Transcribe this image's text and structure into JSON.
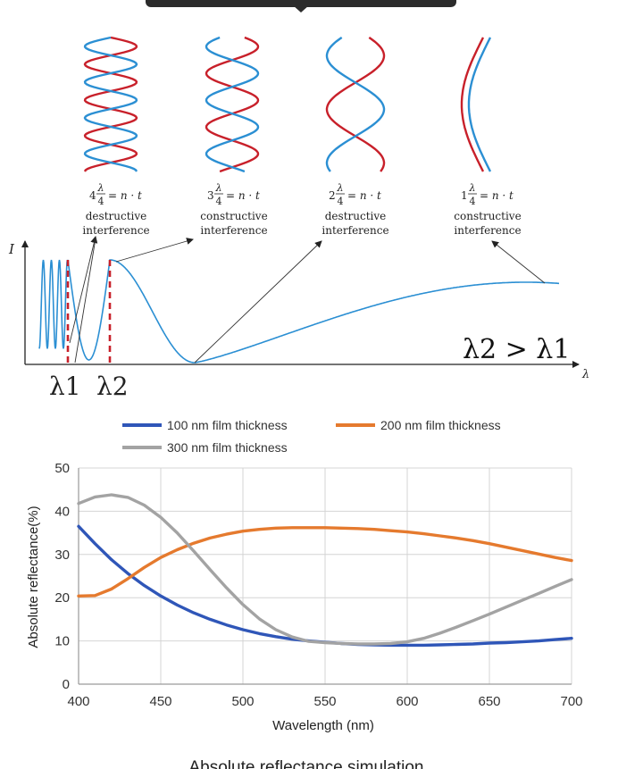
{
  "colors": {
    "red": "#c8202a",
    "blue": "#2b8fd3",
    "c100": "#2f56b8",
    "c200": "#e57a2e",
    "c300": "#a3a3a3",
    "tooltip": "#2b2b2b"
  },
  "diagram": {
    "intensity_axis_label": "I",
    "wavelength_axis_label": "λ",
    "marker_labels": [
      "λ1",
      "λ2"
    ],
    "relation": "λ2 > λ1",
    "panels": [
      {
        "numeral": "4",
        "equation_rhs": "= n · t",
        "line1": "destructive",
        "line2": "interference"
      },
      {
        "numeral": "3",
        "equation_rhs": "= n · t",
        "line1": "constructive",
        "line2": "interference"
      },
      {
        "numeral": "2",
        "equation_rhs": "= n · t",
        "line1": "destructive",
        "line2": "interference"
      },
      {
        "numeral": "1",
        "equation_rhs": "= n · t",
        "line1": "constructive",
        "line2": "interference"
      }
    ],
    "fraction_num": "λ",
    "fraction_den": "4"
  },
  "chart_data": {
    "type": "line",
    "title": "Absolute reflectance simulation",
    "xlabel": "Wavelength (nm)",
    "ylabel": "Absolute reflectance(%)",
    "xlim": [
      400,
      700
    ],
    "ylim": [
      0,
      50
    ],
    "xticks": [
      400,
      450,
      500,
      550,
      600,
      650,
      700
    ],
    "yticks": [
      0,
      10,
      20,
      30,
      40,
      50
    ],
    "grid": true,
    "legend": "top",
    "x": [
      400,
      410,
      420,
      430,
      440,
      450,
      460,
      470,
      480,
      490,
      500,
      510,
      520,
      530,
      540,
      550,
      560,
      570,
      580,
      590,
      600,
      610,
      620,
      630,
      640,
      650,
      660,
      670,
      680,
      690,
      700
    ],
    "series": [
      {
        "name": "100 nm film thickness",
        "color": "#2f56b8",
        "values": [
          36.5,
          32.5,
          28.8,
          25.6,
          22.8,
          20.4,
          18.3,
          16.5,
          15.0,
          13.7,
          12.6,
          11.7,
          11.0,
          10.4,
          10.0,
          9.7,
          9.4,
          9.2,
          9.1,
          9.0,
          9.0,
          9.0,
          9.1,
          9.2,
          9.3,
          9.5,
          9.6,
          9.8,
          10.0,
          10.3,
          10.6
        ]
      },
      {
        "name": "200 nm film thickness",
        "color": "#e57a2e",
        "values": [
          20.4,
          20.5,
          22.0,
          24.4,
          27.0,
          29.3,
          31.1,
          32.6,
          33.8,
          34.7,
          35.4,
          35.8,
          36.1,
          36.2,
          36.2,
          36.2,
          36.1,
          36.0,
          35.8,
          35.5,
          35.2,
          34.8,
          34.3,
          33.8,
          33.2,
          32.5,
          31.7,
          30.9,
          30.1,
          29.3,
          28.6
        ]
      },
      {
        "name": "300 nm film thickness",
        "color": "#a3a3a3",
        "values": [
          41.8,
          43.3,
          43.8,
          43.2,
          41.4,
          38.6,
          35.0,
          30.8,
          26.5,
          22.3,
          18.4,
          15.1,
          12.6,
          10.9,
          9.9,
          9.6,
          9.4,
          9.3,
          9.3,
          9.4,
          9.8,
          10.6,
          11.8,
          13.2,
          14.7,
          16.2,
          17.8,
          19.4,
          21.0,
          22.6,
          24.2
        ]
      }
    ]
  }
}
